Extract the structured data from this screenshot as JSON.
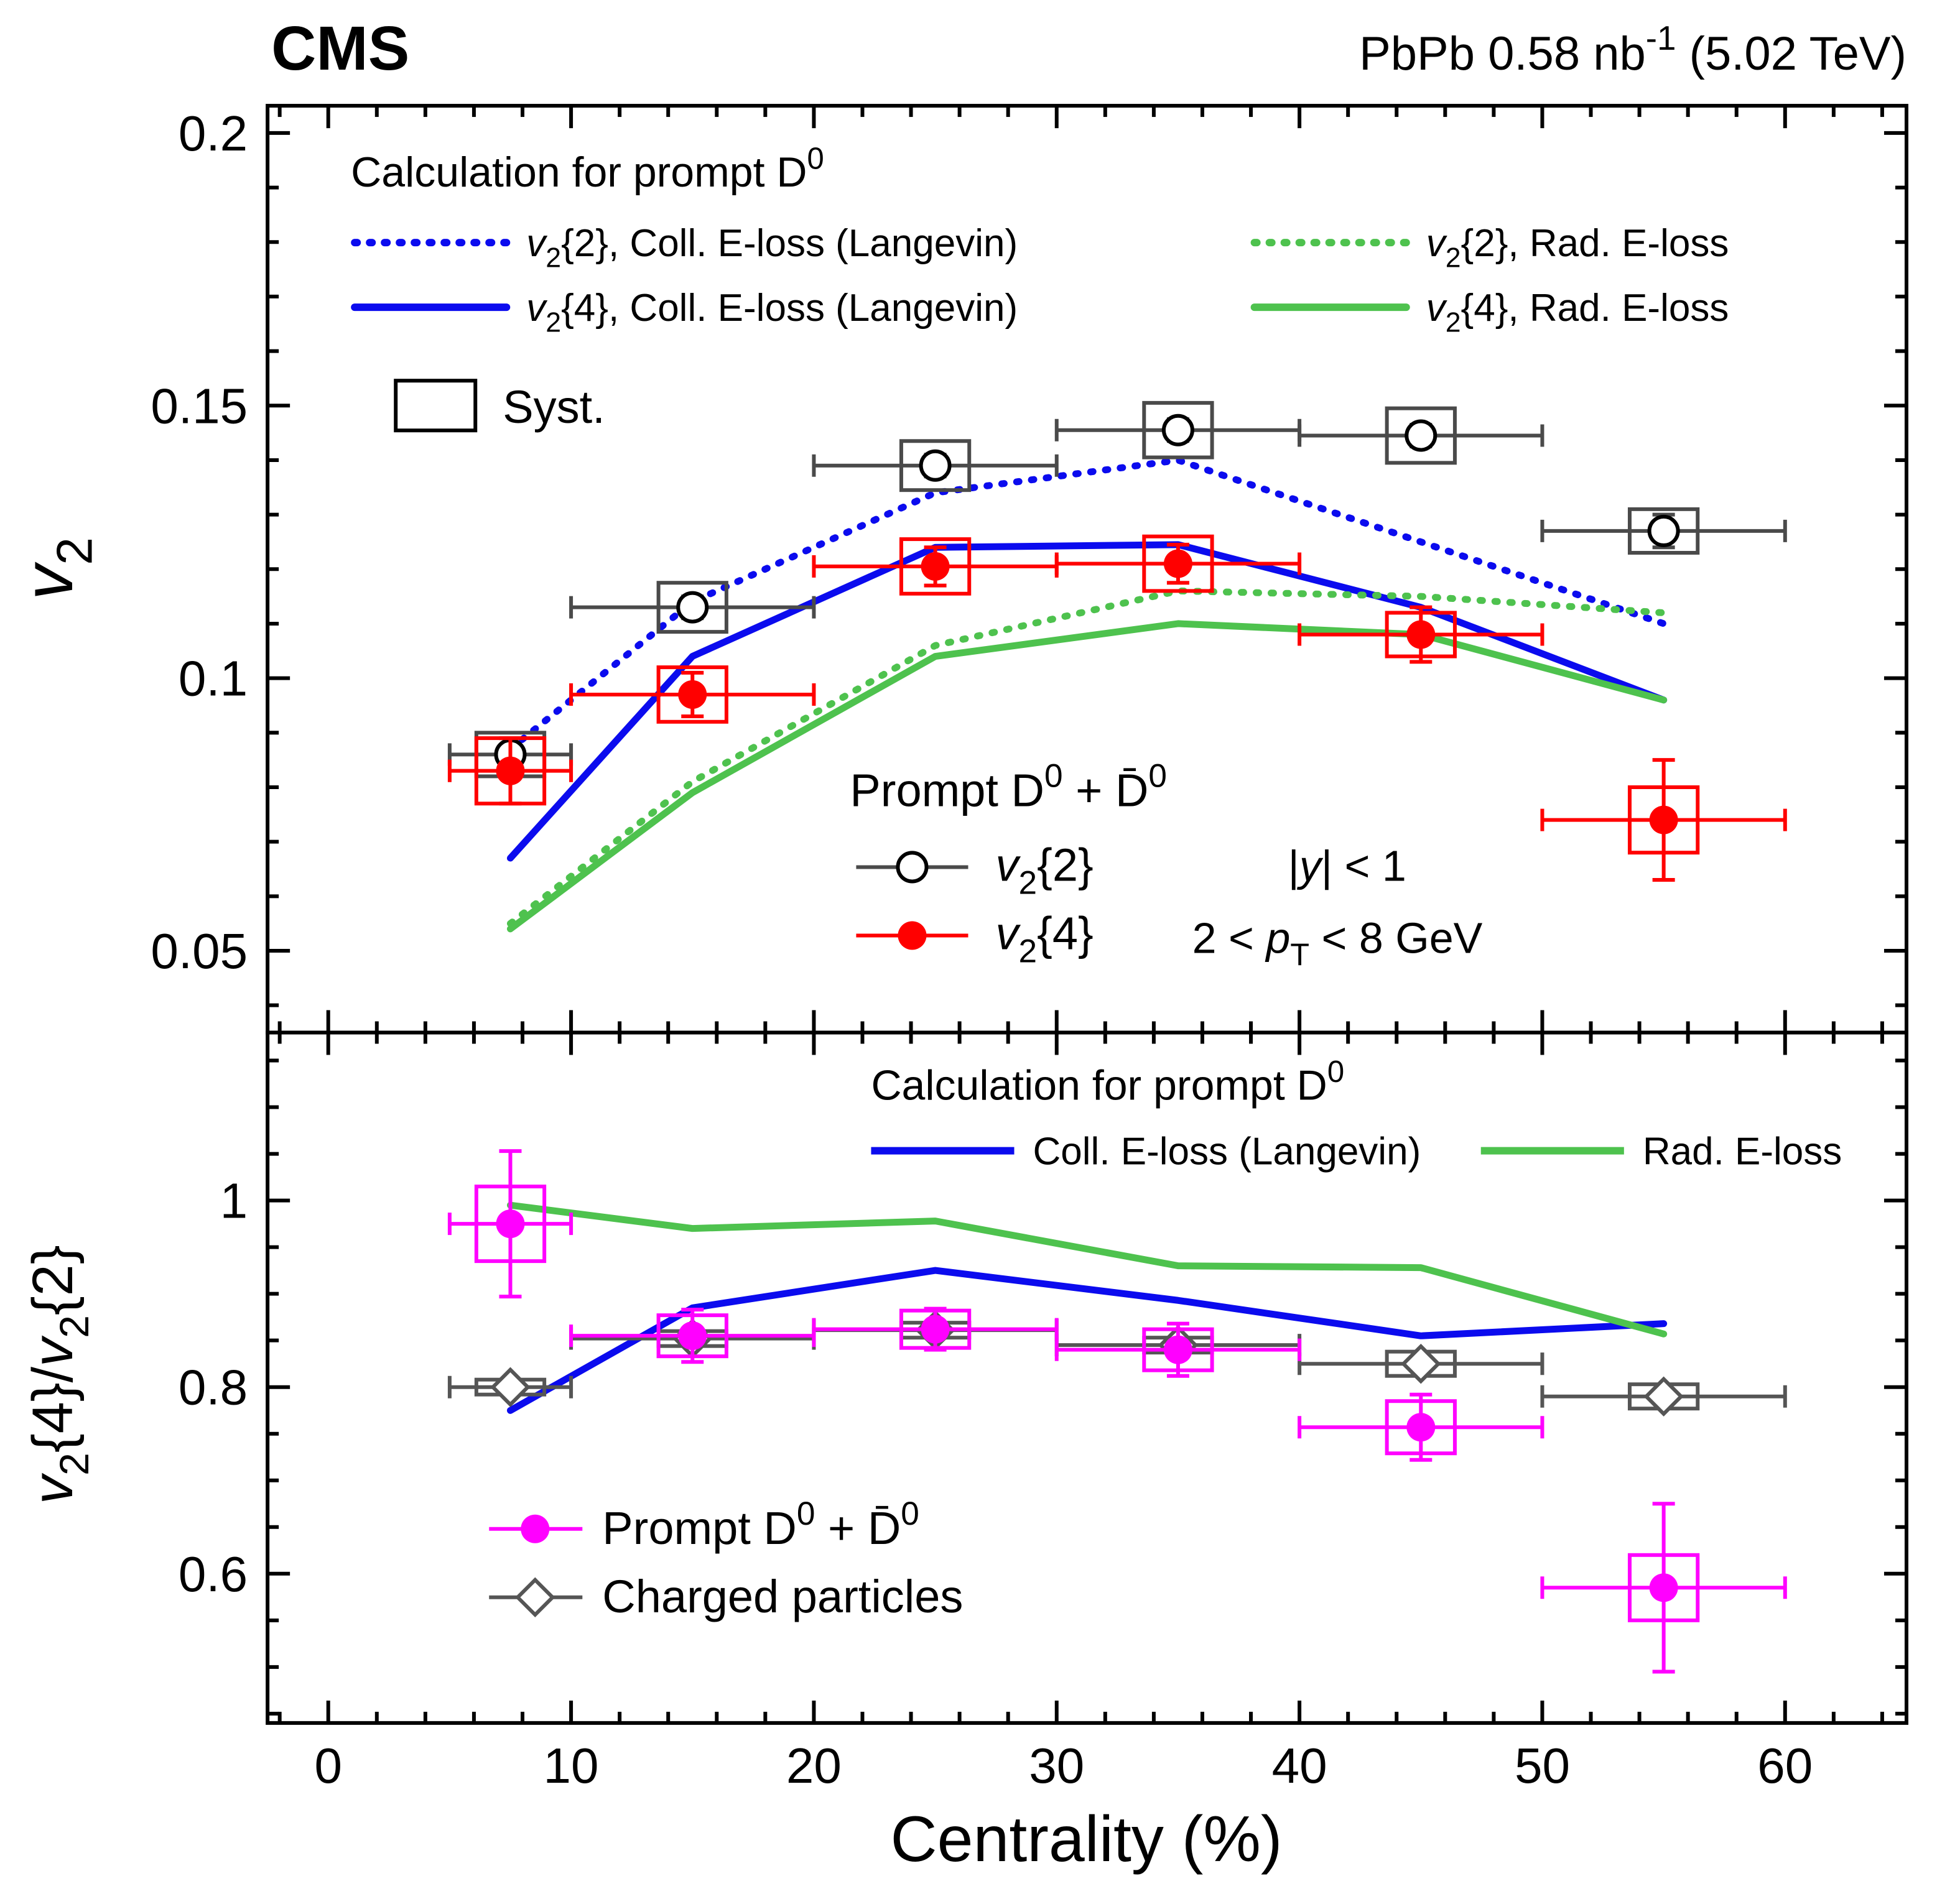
{
  "header": {
    "experiment": "CMS",
    "lumi": "PbPb 0.58 nb^-1^ (5.02 TeV)"
  },
  "axes": {
    "xlabel": "Centrality (%)",
    "top_ylabel": "*v*_2_",
    "bottom_ylabel": "*v*_2_{4}/*v*_2_{2}"
  },
  "colors": {
    "coll_eloss_blue": "#0b0bee",
    "rad_eloss_green": "#4ec24e",
    "v22_gray": "#4a4a4a",
    "v24_red": "#ff0000",
    "d0_magenta": "#ff00ff",
    "charged_gray": "#555555",
    "frame_black": "#000000"
  },
  "chart_data": [
    {
      "panel": "top",
      "type": "line+errorbar-scatter",
      "xlim": [
        -2.5,
        65
      ],
      "ylim": [
        0.035,
        0.205
      ],
      "xticks": [
        0,
        10,
        20,
        30,
        40,
        50,
        60
      ],
      "xminor_step": 2,
      "yticks": [
        0.05,
        0.1,
        0.15,
        0.2
      ],
      "ytick_labels": [
        "0.05",
        "0.1",
        "0.15",
        "0.2"
      ],
      "yminor_step": 0.01,
      "legend_title": "Calculation for prompt D^0^",
      "syst_label": "Syst.",
      "points_title": "Prompt D^0^ + D̄^0^",
      "kinematics": [
        "|*y*| < 1",
        "2 < *p*_T_ < 8 GeV"
      ],
      "curves": [
        {
          "id": "v22-coll",
          "label": "*v*_2_{2}, Coll. E-loss (Langevin)",
          "color": "#0b0bee",
          "dash": true,
          "x": [
            7.5,
            15,
            25,
            35,
            45,
            55
          ],
          "y": [
            0.087,
            0.114,
            0.134,
            0.14,
            0.125,
            0.11
          ]
        },
        {
          "id": "v24-coll",
          "label": "*v*_2_{4}, Coll. E-loss (Langevin)",
          "color": "#0b0bee",
          "dash": false,
          "x": [
            7.5,
            15,
            25,
            35,
            45,
            55
          ],
          "y": [
            0.067,
            0.104,
            0.124,
            0.1245,
            0.113,
            0.096
          ]
        },
        {
          "id": "v22-rad",
          "label": "*v*_2_{2}, Rad. E-loss",
          "color": "#4ec24e",
          "dash": true,
          "x": [
            7.5,
            15,
            25,
            35,
            45,
            55
          ],
          "y": [
            0.055,
            0.081,
            0.106,
            0.116,
            0.115,
            0.112
          ]
        },
        {
          "id": "v24-rad",
          "label": "*v*_2_{4}, Rad. E-loss",
          "color": "#4ec24e",
          "dash": false,
          "x": [
            7.5,
            15,
            25,
            35,
            45,
            55
          ],
          "y": [
            0.054,
            0.079,
            0.104,
            0.11,
            0.108,
            0.096
          ]
        }
      ],
      "series": [
        {
          "id": "v22-data",
          "label": "*v*_2_{2}",
          "marker": "open-circle",
          "color": "#4a4a4a",
          "marker_stroke": "#000000",
          "box_halfwidth": 1.4,
          "points": [
            {
              "x": 7.5,
              "y": 0.086,
              "ey": 0.003,
              "ex": 2.5,
              "sy": 0.004
            },
            {
              "x": 15,
              "y": 0.113,
              "ey": 0.002,
              "ex": 5,
              "sy": 0.0045
            },
            {
              "x": 25,
              "y": 0.139,
              "ey": 0.002,
              "ex": 5,
              "sy": 0.0045
            },
            {
              "x": 35,
              "y": 0.1455,
              "ey": 0.002,
              "ex": 5,
              "sy": 0.005
            },
            {
              "x": 45,
              "y": 0.1445,
              "ey": 0.002,
              "ex": 5,
              "sy": 0.005
            },
            {
              "x": 55,
              "y": 0.127,
              "ey": 0.003,
              "ex": 5,
              "sy": 0.004
            }
          ]
        },
        {
          "id": "v24-data",
          "label": "*v*_2_{4}",
          "marker": "filled-circle",
          "color": "#ff0000",
          "box_halfwidth": 1.4,
          "points": [
            {
              "x": 7.5,
              "y": 0.083,
              "ey": 0.006,
              "ex": 2.5,
              "sy": 0.006
            },
            {
              "x": 15,
              "y": 0.097,
              "ey": 0.004,
              "ex": 5,
              "sy": 0.005
            },
            {
              "x": 25,
              "y": 0.1205,
              "ey": 0.0035,
              "ex": 5,
              "sy": 0.005
            },
            {
              "x": 35,
              "y": 0.121,
              "ey": 0.0035,
              "ex": 5,
              "sy": 0.005
            },
            {
              "x": 45,
              "y": 0.108,
              "ey": 0.005,
              "ex": 5,
              "sy": 0.004
            },
            {
              "x": 55,
              "y": 0.074,
              "ey": 0.011,
              "ex": 5,
              "sy": 0.006
            }
          ]
        }
      ]
    },
    {
      "panel": "bottom",
      "type": "line+errorbar-scatter",
      "xlim": [
        -2.5,
        65
      ],
      "ylim": [
        0.44,
        1.18
      ],
      "xticks": [
        0,
        10,
        20,
        30,
        40,
        50,
        60
      ],
      "xtick_labels": [
        "0",
        "10",
        "20",
        "30",
        "40",
        "50",
        "60"
      ],
      "xminor_step": 2,
      "yticks": [
        0.6,
        0.8,
        1
      ],
      "ytick_labels": [
        "0.6",
        "0.8",
        "1"
      ],
      "yminor_step": 0.05,
      "legend_title": "Calculation for prompt D^0^",
      "curves": [
        {
          "id": "ratio-coll",
          "label": "Coll. E-loss (Langevin)",
          "color": "#0b0bee",
          "dash": false,
          "x": [
            7.5,
            15,
            25,
            35,
            45,
            55
          ],
          "y": [
            0.775,
            0.885,
            0.925,
            0.893,
            0.855,
            0.868
          ]
        },
        {
          "id": "ratio-rad",
          "label": "Rad. E-loss",
          "color": "#4ec24e",
          "dash": false,
          "x": [
            7.5,
            15,
            25,
            35,
            45,
            55
          ],
          "y": [
            0.995,
            0.97,
            0.978,
            0.93,
            0.928,
            0.857
          ]
        }
      ],
      "series": [
        {
          "id": "charged-ratio",
          "label": "Charged particles",
          "marker": "open-diamond",
          "color": "#555555",
          "box_halfwidth": 1.4,
          "points": [
            {
              "x": 7.5,
              "y": 0.8,
              "ey": 0.004,
              "ex": 2.5,
              "sy": 0.008
            },
            {
              "x": 15,
              "y": 0.852,
              "ey": 0.004,
              "ex": 5,
              "sy": 0.008
            },
            {
              "x": 25,
              "y": 0.861,
              "ey": 0.004,
              "ex": 5,
              "sy": 0.008
            },
            {
              "x": 35,
              "y": 0.845,
              "ey": 0.004,
              "ex": 5,
              "sy": 0.008
            },
            {
              "x": 45,
              "y": 0.825,
              "ey": 0.005,
              "ex": 5,
              "sy": 0.013
            },
            {
              "x": 55,
              "y": 0.79,
              "ey": 0.006,
              "ex": 5,
              "sy": 0.013
            }
          ]
        },
        {
          "id": "d0-ratio",
          "label": "Prompt D^0^ + D̄^0^",
          "marker": "filled-circle",
          "color": "#ff00ff",
          "box_halfwidth": 1.4,
          "points": [
            {
              "x": 7.5,
              "y": 0.975,
              "ey": 0.078,
              "ex": 2.5,
              "sy": 0.04
            },
            {
              "x": 15,
              "y": 0.855,
              "ey": 0.028,
              "ex": 5,
              "sy": 0.022
            },
            {
              "x": 25,
              "y": 0.862,
              "ey": 0.022,
              "ex": 5,
              "sy": 0.02
            },
            {
              "x": 35,
              "y": 0.84,
              "ey": 0.028,
              "ex": 5,
              "sy": 0.022
            },
            {
              "x": 45,
              "y": 0.757,
              "ey": 0.035,
              "ex": 5,
              "sy": 0.028
            },
            {
              "x": 55,
              "y": 0.585,
              "ey": 0.09,
              "ex": 5,
              "sy": 0.035
            }
          ]
        }
      ]
    }
  ]
}
